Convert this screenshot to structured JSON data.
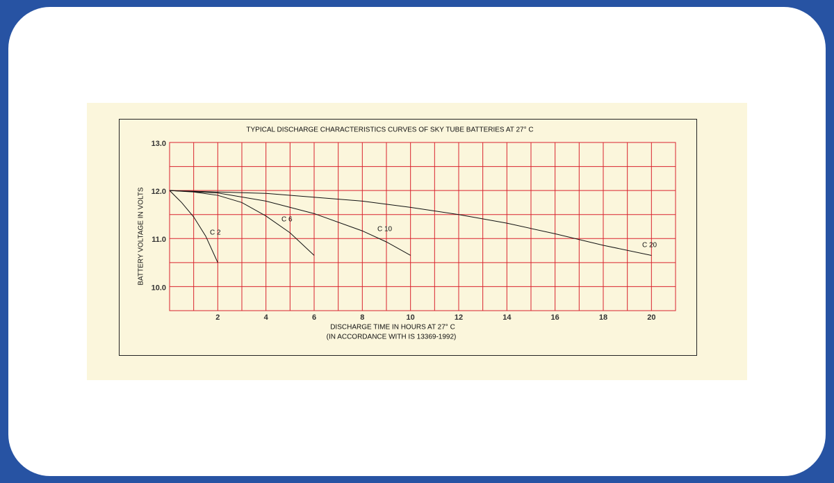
{
  "chart_data": {
    "type": "line",
    "title": "TYPICAL DISCHARGE CHARACTERISTICS CURVES OF SKY TUBE BATTERIES AT 27° C",
    "x_label": "DISCHARGE TIME IN HOURS AT 27° C",
    "x_sublabel": "(IN ACCORDANCE WITH IS 13369-1992)",
    "y_label": "BATTERY VOLTAGE IN VOLTS",
    "xlim": [
      0,
      21
    ],
    "ylim": [
      9.5,
      13.0
    ],
    "xticks": [
      2,
      4,
      6,
      8,
      10,
      12,
      14,
      16,
      18,
      20
    ],
    "x_minor_ticks": [
      1,
      3,
      5,
      7,
      9,
      11,
      13,
      15,
      17,
      19
    ],
    "yticks": [
      {
        "value": 10,
        "label": "10.0"
      },
      {
        "value": 11,
        "label": "11.0"
      },
      {
        "value": 12,
        "label": "12.0"
      },
      {
        "value": 13,
        "label": "13.0"
      }
    ],
    "y_minor_ticks": [
      10.5,
      11.5,
      12.5
    ],
    "grid": true,
    "grid_color": "#d9232e",
    "series": [
      {
        "name": "C 2",
        "color": "#111111",
        "x": [
          0,
          0.5,
          1,
          1.5,
          2
        ],
        "values": [
          12.0,
          11.75,
          11.45,
          11.05,
          10.5
        ]
      },
      {
        "name": "C 6",
        "color": "#111111",
        "x": [
          0,
          1,
          2,
          3,
          4,
          5,
          6
        ],
        "values": [
          12.0,
          11.97,
          11.9,
          11.75,
          11.47,
          11.12,
          10.65
        ]
      },
      {
        "name": "C 10",
        "color": "#111111",
        "x": [
          0,
          2,
          4,
          6,
          8,
          9,
          10
        ],
        "values": [
          12.0,
          11.95,
          11.78,
          11.52,
          11.16,
          10.93,
          10.65
        ]
      },
      {
        "name": "C 20",
        "color": "#111111",
        "x": [
          0,
          4,
          8,
          10,
          12,
          14,
          16,
          18,
          20
        ],
        "values": [
          12.0,
          11.94,
          11.78,
          11.65,
          11.5,
          11.32,
          11.1,
          10.86,
          10.65
        ]
      }
    ]
  }
}
